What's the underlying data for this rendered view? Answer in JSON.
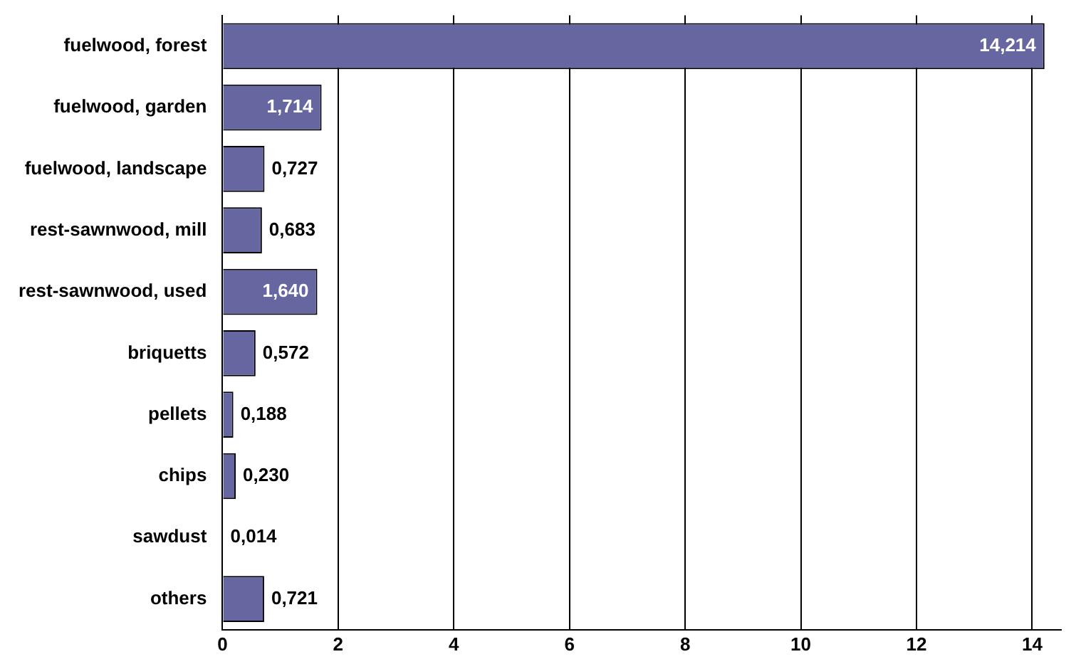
{
  "chart_data": {
    "type": "bar",
    "orientation": "horizontal",
    "categories": [
      "fuelwood, forest",
      "fuelwood, garden",
      "fuelwood, landscape",
      "rest-sawnwood, mill",
      "rest-sawnwood, used",
      "briquetts",
      "pellets",
      "chips",
      "sawdust",
      "others"
    ],
    "values": [
      14.214,
      1.714,
      0.727,
      0.683,
      1.64,
      0.572,
      0.188,
      0.23,
      0.014,
      0.721
    ],
    "value_labels": [
      "14,214",
      "1,714",
      "0,727",
      "0,683",
      "1,640",
      "0,572",
      "0,188",
      "0,230",
      "0,014",
      "0,721"
    ],
    "color": "#6666a0",
    "xlim": [
      0,
      14.5
    ],
    "xticks": [
      0,
      2,
      4,
      6,
      8,
      10,
      12,
      14
    ],
    "grid": "x",
    "legend": false
  }
}
